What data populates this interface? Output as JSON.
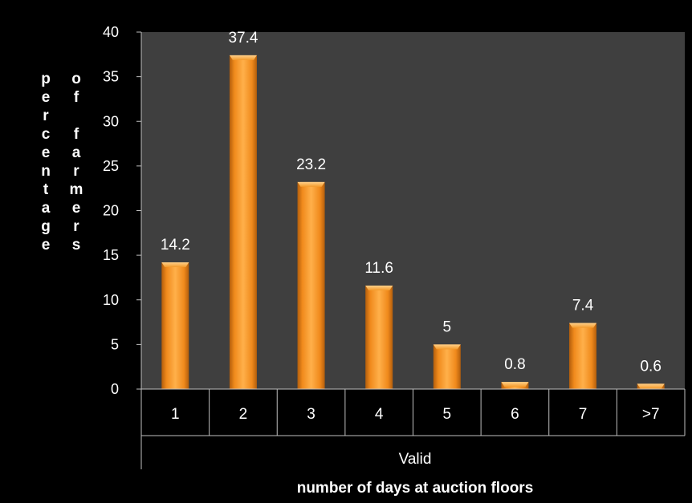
{
  "chart_data": {
    "type": "bar",
    "categories": [
      "1",
      "2",
      "3",
      "4",
      "5",
      "6",
      "7",
      ">7"
    ],
    "values": [
      14.2,
      37.4,
      23.2,
      11.6,
      5,
      0.8,
      7.4,
      0.6
    ],
    "data_labels": [
      "14.2",
      "37.4",
      "23.2",
      "11.6",
      "5",
      "0.8",
      "7.4",
      "0.6"
    ],
    "title": "",
    "xgroup_label": "Valid",
    "xlabel": "number of days at auction floors",
    "ylabel_columns": [
      "percentage",
      "of farmers"
    ],
    "ylim": [
      0,
      40
    ],
    "yticks": [
      "0",
      "5",
      "10",
      "15",
      "20",
      "25",
      "30",
      "35",
      "40"
    ],
    "grid": false,
    "legend": "none"
  },
  "colors": {
    "page_background": "#000000",
    "plot_background": "#3f3f3f",
    "bar_light": "#ffb24d",
    "bar_mid": "#f7931e",
    "bar_dark": "#c86a10",
    "text": "#ffffff",
    "axis": "#bfbfbf"
  }
}
